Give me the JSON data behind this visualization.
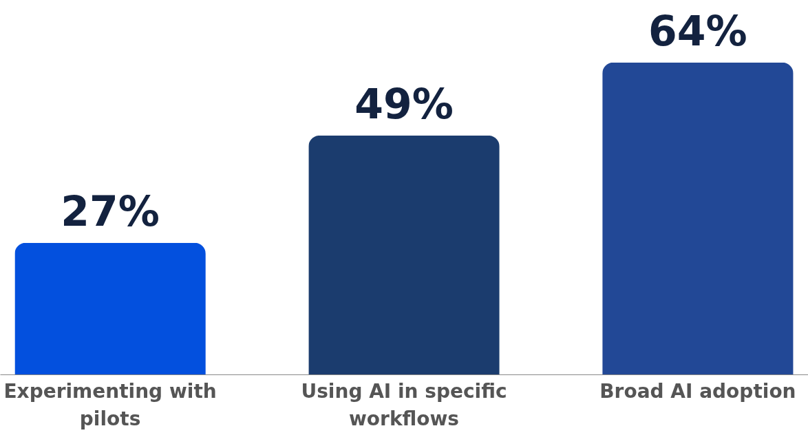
{
  "chart_data": {
    "type": "bar",
    "categories": [
      "Experimenting with pilots",
      "Using AI in specific workflows",
      "Broad AI adoption"
    ],
    "values": [
      27,
      49,
      64
    ],
    "colors": [
      "#0350de",
      "#1b3c6e",
      "#224896"
    ],
    "value_labels": [
      "27%",
      "49%",
      "64%"
    ],
    "grid": false
  }
}
